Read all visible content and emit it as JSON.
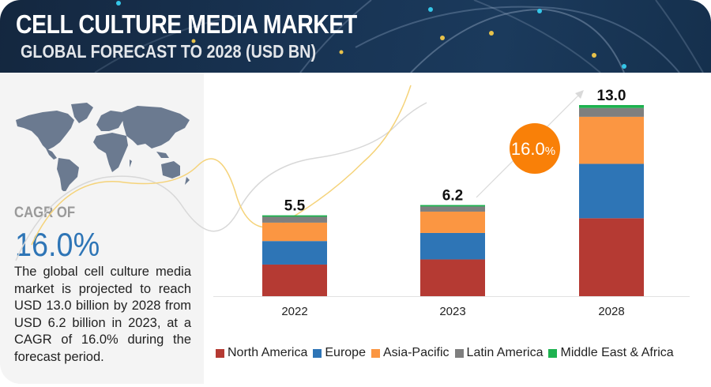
{
  "header": {
    "title": "CELL CULTURE MEDIA MARKET",
    "subtitle": "GLOBAL FORECAST TO 2028 (USD BN)"
  },
  "left_panel": {
    "map_icon": "world-map-icon",
    "cagr_label": "CAGR OF",
    "cagr_value": "16.0%",
    "description": "The global cell culture media market is projected to reach USD 13.0 billion by 2028 from USD 6.2 billion in 2023, at a CAGR of 16.0% during the forecast period."
  },
  "growth_badge": {
    "value": "16.0",
    "unit": "%",
    "color": "#f98008"
  },
  "colors": {
    "header_bg": "#183454",
    "left_panel_bg": "#f4f4f4",
    "cagr_value": "#2e75b6",
    "map": "#6b7a90"
  },
  "chart_data": {
    "type": "bar",
    "stacked": true,
    "title": "CELL CULTURE MEDIA MARKET — GLOBAL FORECAST TO 2028 (USD BN)",
    "xlabel": "",
    "ylabel": "USD BN",
    "ylim": [
      0,
      13.5
    ],
    "grid": false,
    "legend_position": "bottom",
    "categories": [
      "2022",
      "2023",
      "2028"
    ],
    "totals": [
      "5.5",
      "6.2",
      "13.0"
    ],
    "series": [
      {
        "name": "North America",
        "color": "#b53a33",
        "values": [
          2.15,
          2.5,
          5.3
        ]
      },
      {
        "name": "Europe",
        "color": "#2e75b6",
        "values": [
          1.6,
          1.8,
          3.7
        ]
      },
      {
        "name": "Asia-Pacific",
        "color": "#fb9642",
        "values": [
          1.25,
          1.45,
          3.2
        ]
      },
      {
        "name": "Latin America",
        "color": "#7f7f7f",
        "values": [
          0.4,
          0.35,
          0.6
        ]
      },
      {
        "name": "Middle East & Africa",
        "color": "#1db24f",
        "values": [
          0.1,
          0.1,
          0.2
        ]
      }
    ]
  }
}
